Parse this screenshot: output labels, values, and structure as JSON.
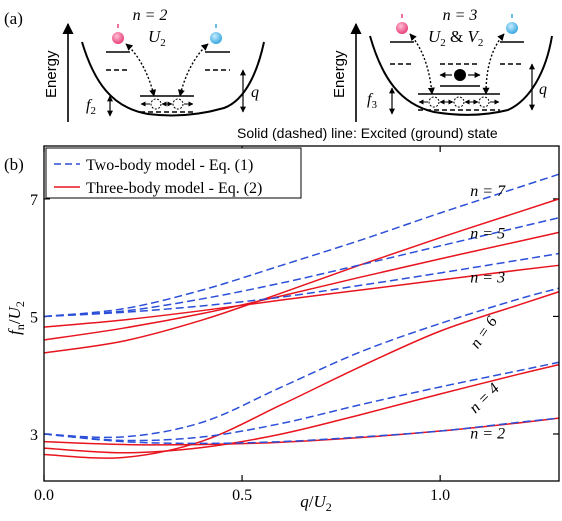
{
  "panel_a": {
    "label": "(a)",
    "left": {
      "n_label": "n = 2",
      "interaction": "U",
      "interaction_sub": "2",
      "energy_label": "Energy",
      "f_label": "f",
      "f_sub": "2",
      "q_label": "q"
    },
    "right": {
      "n_label": "n = 3",
      "interaction": "U",
      "interaction_sub": "2",
      "interaction_mid": " & ",
      "interaction2": "V",
      "interaction2_sub": "2",
      "energy_label": "Energy",
      "f_label": "f",
      "f_sub": "3",
      "q_label": "q"
    },
    "caption": "Solid (dashed) line: Excited (ground) state",
    "colors": {
      "spin_up": "#e8407a",
      "spin_down": "#3aa8e0"
    }
  },
  "panel_b": {
    "label": "(b)"
  },
  "chart_data": {
    "type": "line",
    "xlabel": {
      "main": "q",
      "slash": "/",
      "den": "U",
      "den_sub": "2"
    },
    "ylabel": {
      "main": "f",
      "main_sub": "n",
      "slash": "/",
      "den": "U",
      "den_sub": "2"
    },
    "xlim": [
      0,
      1.3
    ],
    "ylim": [
      2.2,
      7.9
    ],
    "xticks": [
      0.0,
      0.5,
      1.0
    ],
    "xtick_labels": [
      "0.0",
      "0.5",
      "1.0"
    ],
    "yticks": [
      3,
      5,
      7
    ],
    "ytick_labels": [
      "3",
      "5",
      "7"
    ],
    "legend": {
      "position": "top-left",
      "entries": [
        {
          "label": "Two-body model - Eq. (1)",
          "style": "dashed",
          "color": "#2b4fd8"
        },
        {
          "label": "Three-body model - Eq. (2)",
          "style": "solid",
          "color": "#e8141e"
        }
      ]
    },
    "series": [
      {
        "group": "two-body",
        "n": 2,
        "x": [
          0,
          0.2,
          0.4,
          0.6,
          0.8,
          1.0,
          1.2,
          1.3
        ],
        "y": [
          3.0,
          2.87,
          2.84,
          2.87,
          2.95,
          3.05,
          3.2,
          3.27
        ]
      },
      {
        "group": "two-body",
        "n": 4,
        "x": [
          0,
          0.2,
          0.4,
          0.6,
          0.8,
          1.0,
          1.2,
          1.3
        ],
        "y": [
          3.0,
          2.89,
          2.95,
          3.18,
          3.5,
          3.8,
          4.08,
          4.22
        ]
      },
      {
        "group": "two-body",
        "n": 6,
        "x": [
          0,
          0.2,
          0.4,
          0.6,
          0.8,
          1.0,
          1.2,
          1.3
        ],
        "y": [
          3.0,
          2.95,
          3.2,
          3.8,
          4.4,
          4.88,
          5.3,
          5.48
        ]
      },
      {
        "group": "two-body",
        "n": 3,
        "x": [
          0,
          0.2,
          0.4,
          0.6,
          0.8,
          1.0,
          1.2,
          1.3
        ],
        "y": [
          5.0,
          5.07,
          5.18,
          5.33,
          5.53,
          5.74,
          5.96,
          6.07
        ]
      },
      {
        "group": "two-body",
        "n": 5,
        "x": [
          0,
          0.2,
          0.4,
          0.6,
          0.8,
          1.0,
          1.2,
          1.3
        ],
        "y": [
          5.0,
          5.09,
          5.3,
          5.57,
          5.88,
          6.2,
          6.52,
          6.68
        ]
      },
      {
        "group": "two-body",
        "n": 7,
        "x": [
          0,
          0.2,
          0.4,
          0.6,
          0.8,
          1.0,
          1.2,
          1.3
        ],
        "y": [
          5.0,
          5.13,
          5.45,
          5.87,
          6.3,
          6.76,
          7.2,
          7.42
        ]
      },
      {
        "group": "three-body",
        "n": 2,
        "x": [
          0,
          0.2,
          0.4,
          0.6,
          0.8,
          1.0,
          1.2,
          1.3
        ],
        "y": [
          2.87,
          2.82,
          2.82,
          2.86,
          2.94,
          3.05,
          3.19,
          3.27
        ]
      },
      {
        "group": "three-body",
        "n": 4,
        "x": [
          0,
          0.2,
          0.4,
          0.6,
          0.8,
          1.0,
          1.2,
          1.3
        ],
        "y": [
          2.76,
          2.68,
          2.77,
          3.0,
          3.33,
          3.68,
          4.02,
          4.18
        ]
      },
      {
        "group": "three-body",
        "n": 6,
        "x": [
          0,
          0.2,
          0.4,
          0.6,
          0.8,
          1.0,
          1.2,
          1.3
        ],
        "y": [
          2.65,
          2.6,
          2.88,
          3.5,
          4.15,
          4.75,
          5.2,
          5.42
        ]
      },
      {
        "group": "three-body",
        "n": 3,
        "x": [
          0,
          0.2,
          0.4,
          0.6,
          0.8,
          1.0,
          1.2,
          1.3
        ],
        "y": [
          4.82,
          4.94,
          5.1,
          5.28,
          5.45,
          5.62,
          5.79,
          5.87
        ]
      },
      {
        "group": "three-body",
        "n": 5,
        "x": [
          0,
          0.2,
          0.4,
          0.6,
          0.8,
          1.0,
          1.2,
          1.3
        ],
        "y": [
          4.6,
          4.8,
          5.05,
          5.35,
          5.67,
          5.98,
          6.28,
          6.43
        ]
      },
      {
        "group": "three-body",
        "n": 7,
        "x": [
          0,
          0.2,
          0.4,
          0.6,
          0.8,
          1.0,
          1.2,
          1.3
        ],
        "y": [
          4.38,
          4.58,
          4.94,
          5.4,
          5.88,
          6.34,
          6.78,
          7.0
        ]
      }
    ],
    "annotations": [
      {
        "text": "n = 7",
        "x": 1.12,
        "y": 7.05
      },
      {
        "text": "n = 5",
        "x": 1.12,
        "y": 6.33
      },
      {
        "text": "n = 3",
        "x": 1.12,
        "y": 5.58
      },
      {
        "text": "n = 6",
        "x": 1.12,
        "y": 4.68,
        "rotate": -55
      },
      {
        "text": "n = 4",
        "x": 1.12,
        "y": 3.55,
        "rotate": -45
      },
      {
        "text": "n = 2",
        "x": 1.12,
        "y": 2.92
      }
    ]
  }
}
